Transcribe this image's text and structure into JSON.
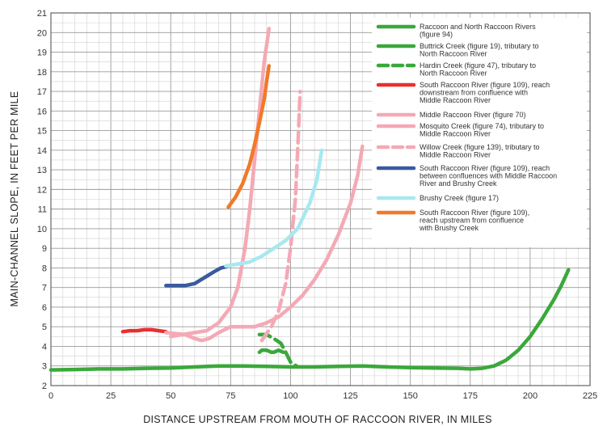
{
  "chart_data": {
    "type": "line",
    "xlabel": "DISTANCE UPSTREAM FROM MOUTH OF RACCOON RIVER, IN MILES",
    "ylabel": "MAIN-CHANNEL SLOPE, IN FEET PER MILE",
    "xlim": [
      0,
      225
    ],
    "ylim": [
      2,
      21
    ],
    "x_ticks": [
      0,
      25,
      50,
      75,
      100,
      125,
      150,
      175,
      200,
      225
    ],
    "y_ticks": [
      2,
      3,
      4,
      5,
      6,
      7,
      8,
      9,
      10,
      11,
      12,
      13,
      14,
      15,
      16,
      17,
      18,
      19,
      20,
      21
    ],
    "grid": true,
    "legend_position": "top-right",
    "series": [
      {
        "name": "Raccoon and North Raccoon Rivers (figure 94)",
        "color": "#3aa83a",
        "dash": "solid",
        "x": [
          0,
          10,
          20,
          30,
          40,
          50,
          60,
          70,
          80,
          90,
          100,
          110,
          120,
          130,
          140,
          150,
          160,
          170,
          175,
          180,
          185,
          190,
          195,
          200,
          205,
          210,
          213,
          216
        ],
        "y": [
          2.8,
          2.82,
          2.85,
          2.85,
          2.88,
          2.9,
          2.95,
          3.0,
          3.0,
          2.98,
          2.95,
          2.95,
          2.98,
          3.0,
          2.95,
          2.92,
          2.9,
          2.88,
          2.85,
          2.88,
          3.0,
          3.3,
          3.8,
          4.5,
          5.4,
          6.4,
          7.1,
          7.9
        ]
      },
      {
        "name": "Buttrick Creek (figure 19), tributary to North Raccoon River",
        "color": "#3aa83a",
        "dash": "solid",
        "x": [
          87,
          88,
          89,
          90,
          91,
          92,
          93,
          94,
          95,
          96,
          97
        ],
        "y": [
          3.7,
          3.8,
          3.8,
          3.8,
          3.75,
          3.7,
          3.7,
          3.75,
          3.8,
          3.75,
          3.7
        ]
      },
      {
        "name": "Hardin Creek (figure 47), tributary to North Raccoon River",
        "color": "#3aa83a",
        "dash": "dashed",
        "x": [
          87,
          90,
          93,
          96,
          98,
          100,
          103
        ],
        "y": [
          4.6,
          4.6,
          4.4,
          4.15,
          3.7,
          3.2,
          2.95
        ]
      },
      {
        "name": "South Raccoon River (figure 109), reach downstream from confluence with Middle Raccoon River",
        "color": "#e83030",
        "dash": "solid",
        "x": [
          30,
          33,
          36,
          39,
          42,
          45,
          48
        ],
        "y": [
          4.75,
          4.8,
          4.8,
          4.85,
          4.85,
          4.8,
          4.75
        ]
      },
      {
        "name": "Middle Raccoon River (figure 70)",
        "color": "#f4a9b5",
        "dash": "solid",
        "x": [
          48,
          52,
          56,
          60,
          63,
          66,
          70,
          75,
          80,
          85,
          90,
          95,
          100,
          105,
          110,
          115,
          120,
          125,
          128,
          130
        ],
        "y": [
          4.7,
          4.65,
          4.6,
          4.4,
          4.3,
          4.4,
          4.7,
          5.0,
          5.0,
          5.0,
          5.2,
          5.5,
          6.0,
          6.6,
          7.4,
          8.4,
          9.7,
          11.3,
          12.7,
          14.2
        ]
      },
      {
        "name": "Mosquito Creek (figure 74), tributary to Middle Raccoon River",
        "color": "#f4a9b5",
        "dash": "solid",
        "x": [
          50,
          55,
          60,
          65,
          70,
          75,
          78,
          81,
          83,
          85,
          87,
          89,
          91
        ],
        "y": [
          4.5,
          4.6,
          4.7,
          4.8,
          5.2,
          6.0,
          7.0,
          9.0,
          11.0,
          13.5,
          16.0,
          18.5,
          20.2
        ]
      },
      {
        "name": "Willow Creek (figure 139), tributary to Middle Raccoon River",
        "color": "#f4a9b5",
        "dash": "dashed",
        "x": [
          88,
          92,
          95,
          98,
          100,
          102,
          103,
          104
        ],
        "y": [
          4.3,
          5.0,
          5.8,
          7.2,
          9.0,
          11.5,
          14.0,
          17.0
        ]
      },
      {
        "name": "South Raccoon River (figure 109), reach between confluences with Middle Raccoon River and Brushy Creek",
        "color": "#3a5aa0",
        "dash": "solid",
        "x": [
          48,
          52,
          56,
          60,
          64,
          68,
          71,
          73
        ],
        "y": [
          7.1,
          7.1,
          7.1,
          7.2,
          7.5,
          7.8,
          8.0,
          8.05
        ]
      },
      {
        "name": "Brushy Creek (figure 17)",
        "color": "#a8e8f0",
        "dash": "solid",
        "x": [
          73,
          78,
          83,
          88,
          93,
          98,
          103,
          108,
          111,
          113
        ],
        "y": [
          8.1,
          8.2,
          8.3,
          8.6,
          9.0,
          9.4,
          10.0,
          11.3,
          12.5,
          14.0
        ]
      },
      {
        "name": "South Raccoon River (figure 109), reach upstream from confluence with Brushy Creek",
        "color": "#f07a2a",
        "dash": "solid",
        "x": [
          74,
          77,
          80,
          83,
          85,
          87,
          89,
          90,
          91
        ],
        "y": [
          11.1,
          11.6,
          12.3,
          13.3,
          14.3,
          15.4,
          16.6,
          17.5,
          18.3
        ]
      }
    ],
    "legend": [
      {
        "line1": "Raccoon and North Raccoon Rivers",
        "line2": "(figure 94)",
        "line3": ""
      },
      {
        "line1": "Buttrick Creek (figure 19), tributary to",
        "line2": "North Raccoon River",
        "line3": ""
      },
      {
        "line1": "Hardin Creek (figure 47), tributary to",
        "line2": "North Raccoon River",
        "line3": ""
      },
      {
        "line1": "South Raccoon River (figure 109), reach",
        "line2": "downstream from confluence with",
        "line3": "Middle Raccoon River"
      },
      {
        "line1": "Middle Raccoon River (figure 70)",
        "line2": "",
        "line3": ""
      },
      {
        "line1": "Mosquito Creek (figure 74), tributary to",
        "line2": "Middle Raccoon River",
        "line3": ""
      },
      {
        "line1": "Willow Creek (figure 139), tributary to",
        "line2": "Middle Raccoon River",
        "line3": ""
      },
      {
        "line1": "South Raccoon River (figure 109), reach",
        "line2": "between confluences with Middle Raccoon",
        "line3": "River and Brushy Creek"
      },
      {
        "line1": "Brushy Creek (figure 17)",
        "line2": "",
        "line3": ""
      },
      {
        "line1": "South Raccoon River (figure 109),",
        "line2": "reach upstream from confluence",
        "line3": "with Brushy Creek"
      }
    ]
  }
}
